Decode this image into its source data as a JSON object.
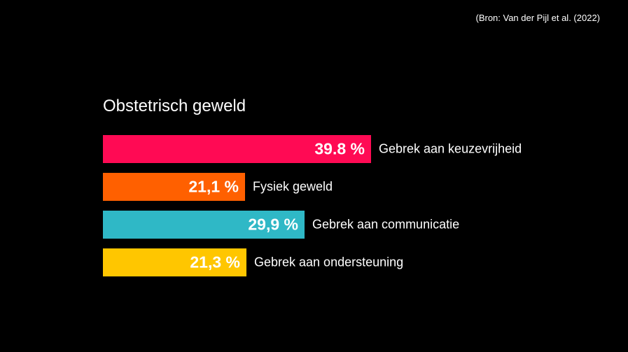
{
  "source": "(Bron: Van der Pijl et al. (2022)",
  "chart_data": {
    "type": "bar",
    "orientation": "horizontal",
    "title": "Obstetrisch geweld",
    "xlabel": "",
    "ylabel": "",
    "xlim": [
      0,
      100
    ],
    "grid": false,
    "legend": "none",
    "unit": "%",
    "categories": [
      "Gebrek aan keuzevrijheid",
      "Fysiek geweld",
      "Gebrek aan communicatie",
      "Gebrek aan ondersteuning"
    ],
    "values": [
      39.8,
      21.1,
      29.9,
      21.3
    ],
    "value_labels": [
      "39.8 %",
      "21,1 %",
      "29,9 %",
      "21,3 %"
    ],
    "colors": [
      "#ff0a54",
      "#ff6000",
      "#2fb8c6",
      "#ffc600"
    ]
  }
}
